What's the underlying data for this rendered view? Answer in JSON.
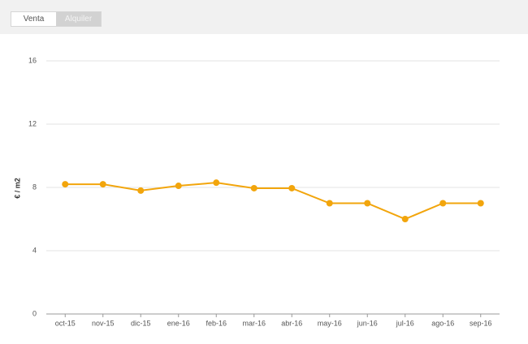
{
  "tabs": [
    "Venta",
    "Alquiler"
  ],
  "active_tab": 1,
  "chart_data": {
    "type": "line",
    "ylabel": "€ / m2",
    "categories": [
      "oct-15",
      "nov-15",
      "dic-15",
      "ene-16",
      "feb-16",
      "mar-16",
      "abr-16",
      "may-16",
      "jun-16",
      "jul-16",
      "ago-16",
      "sep-16"
    ],
    "values": [
      8.2,
      8.2,
      7.8,
      8.1,
      8.3,
      7.95,
      7.95,
      7.0,
      7.0,
      6.0,
      7.0,
      7.0
    ],
    "color": "#f2a50c",
    "ylim": [
      0,
      16
    ],
    "yticks": [
      0,
      4,
      8,
      12,
      16
    ],
    "grid": true
  }
}
